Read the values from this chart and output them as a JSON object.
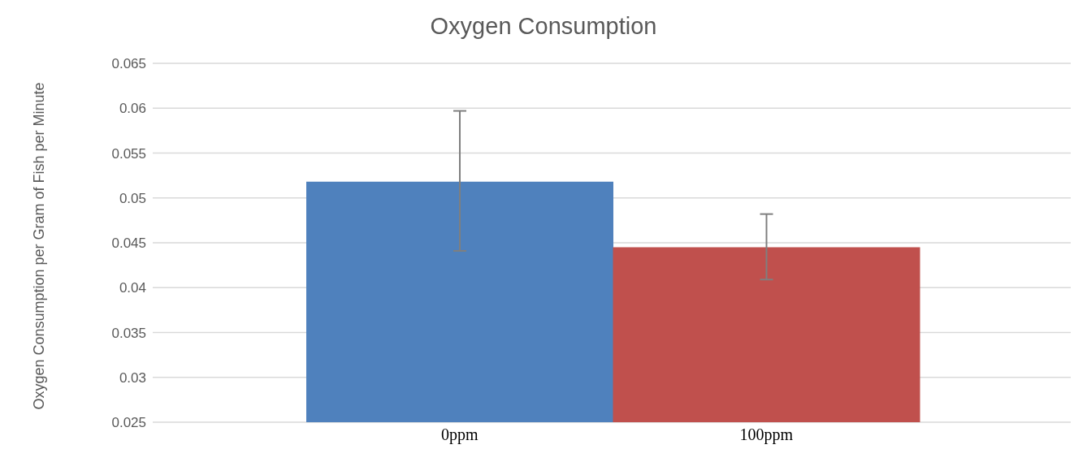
{
  "chart_data": {
    "type": "bar",
    "title": "Oxygen Consumption",
    "ylabel": "Oxygen Consumption per Gram of Fish per Minute",
    "categories": [
      "0ppm",
      "100ppm"
    ],
    "values": [
      0.0518,
      0.0445
    ],
    "colors": [
      "#4f81bd",
      "#c0504d"
    ],
    "errors": [
      [
        0.0441,
        0.0597
      ],
      [
        0.0409,
        0.0482
      ]
    ],
    "ylim": [
      0.025,
      0.065
    ],
    "yticks": [
      0.025,
      0.03,
      0.035,
      0.04,
      0.045,
      0.05,
      0.055,
      0.06,
      0.065
    ],
    "grid": "y",
    "legend": false
  }
}
